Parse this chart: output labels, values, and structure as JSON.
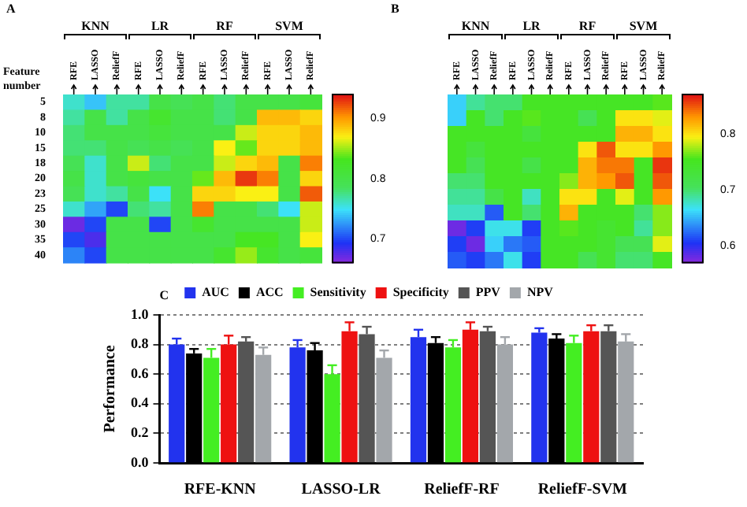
{
  "chart_data": [
    {
      "type": "heatmap",
      "title": "A",
      "ylabel": "Feature number",
      "annotations": [
        "KNN",
        "LR",
        "RF",
        "SVM"
      ],
      "categories": [
        "RFE",
        "LASSO",
        "ReliefF",
        "RFE",
        "LASSO",
        "ReliefF",
        "RFE",
        "LASSO",
        "ReliefF",
        "RFE",
        "LASSO",
        "ReliefF"
      ],
      "y_categories": [
        "5",
        "8",
        "10",
        "15",
        "18",
        "20",
        "23",
        "25",
        "30",
        "35",
        "40"
      ],
      "cells": [
        [
          0.76,
          0.74,
          0.77,
          0.77,
          0.8,
          0.79,
          0.8,
          0.78,
          0.8,
          0.8,
          0.8,
          0.81
        ],
        [
          0.77,
          0.8,
          0.77,
          0.8,
          0.82,
          0.8,
          0.8,
          0.78,
          0.8,
          0.89,
          0.89,
          0.88
        ],
        [
          0.78,
          0.8,
          0.8,
          0.8,
          0.81,
          0.8,
          0.8,
          0.8,
          0.86,
          0.88,
          0.88,
          0.89
        ],
        [
          0.78,
          0.78,
          0.8,
          0.79,
          0.8,
          0.79,
          0.8,
          0.87,
          0.84,
          0.88,
          0.88,
          0.89
        ],
        [
          0.79,
          0.76,
          0.8,
          0.86,
          0.78,
          0.8,
          0.8,
          0.86,
          0.88,
          0.89,
          0.8,
          0.91
        ],
        [
          0.8,
          0.76,
          0.8,
          0.81,
          0.8,
          0.8,
          0.84,
          0.89,
          0.93,
          0.91,
          0.8,
          0.88
        ],
        [
          0.79,
          0.76,
          0.77,
          0.8,
          0.75,
          0.8,
          0.88,
          0.88,
          0.87,
          0.87,
          0.8,
          0.92
        ],
        [
          0.76,
          0.73,
          0.7,
          0.78,
          0.77,
          0.8,
          0.91,
          0.8,
          0.8,
          0.78,
          0.75,
          0.86
        ],
        [
          0.67,
          0.7,
          0.8,
          0.8,
          0.7,
          0.8,
          0.82,
          0.8,
          0.8,
          0.8,
          0.8,
          0.86
        ],
        [
          0.7,
          0.68,
          0.8,
          0.8,
          0.8,
          0.8,
          0.8,
          0.8,
          0.83,
          0.83,
          0.8,
          0.87
        ],
        [
          0.72,
          0.7,
          0.8,
          0.8,
          0.8,
          0.8,
          0.8,
          0.82,
          0.85,
          0.82,
          0.8,
          0.81
        ]
      ],
      "clim": [
        0.66,
        0.94
      ],
      "cticks": [
        0.7,
        0.8,
        0.9
      ]
    },
    {
      "type": "heatmap",
      "title": "B",
      "annotations": [
        "KNN",
        "LR",
        "RF",
        "SVM"
      ],
      "categories": [
        "RFE",
        "LASSO",
        "ReliefF",
        "RFE",
        "LASSO",
        "ReliefF",
        "RFE",
        "LASSO",
        "ReliefF",
        "RFE",
        "LASSO",
        "ReliefF"
      ],
      "y_categories": [
        "5",
        "8",
        "10",
        "15",
        "18",
        "20",
        "23",
        "25",
        "30",
        "35",
        "40"
      ],
      "tick_labels": "x",
      "cells": [
        [
          0.66,
          0.69,
          0.7,
          0.7,
          0.75,
          0.75,
          0.75,
          0.75,
          0.75,
          0.75,
          0.75,
          0.76
        ],
        [
          0.66,
          0.75,
          0.7,
          0.75,
          0.76,
          0.75,
          0.75,
          0.71,
          0.75,
          0.8,
          0.8,
          0.79
        ],
        [
          0.75,
          0.75,
          0.75,
          0.75,
          0.73,
          0.75,
          0.75,
          0.75,
          0.75,
          0.82,
          0.82,
          0.8
        ],
        [
          0.75,
          0.73,
          0.75,
          0.75,
          0.75,
          0.75,
          0.75,
          0.8,
          0.85,
          0.8,
          0.8,
          0.83
        ],
        [
          0.75,
          0.71,
          0.75,
          0.75,
          0.72,
          0.75,
          0.75,
          0.82,
          0.84,
          0.84,
          0.75,
          0.86
        ],
        [
          0.7,
          0.7,
          0.75,
          0.75,
          0.75,
          0.75,
          0.77,
          0.82,
          0.83,
          0.85,
          0.75,
          0.85
        ],
        [
          0.69,
          0.69,
          0.72,
          0.75,
          0.68,
          0.75,
          0.8,
          0.8,
          0.75,
          0.79,
          0.75,
          0.83
        ],
        [
          0.68,
          0.68,
          0.62,
          0.75,
          0.7,
          0.75,
          0.82,
          0.75,
          0.75,
          0.75,
          0.7,
          0.77
        ],
        [
          0.58,
          0.61,
          0.67,
          0.67,
          0.61,
          0.75,
          0.76,
          0.75,
          0.74,
          0.75,
          0.69,
          0.77
        ],
        [
          0.61,
          0.58,
          0.66,
          0.63,
          0.62,
          0.75,
          0.75,
          0.75,
          0.74,
          0.71,
          0.71,
          0.79
        ],
        [
          0.62,
          0.61,
          0.63,
          0.67,
          0.61,
          0.75,
          0.75,
          0.71,
          0.74,
          0.7,
          0.7,
          0.75
        ]
      ],
      "clim": [
        0.57,
        0.87
      ],
      "cticks": [
        0.6,
        0.7,
        0.8
      ]
    },
    {
      "type": "bar",
      "title": "C",
      "ylabel": "Performance",
      "categories": [
        "RFE-KNN",
        "LASSO-LR",
        "ReliefF-RF",
        "ReliefF-SVM"
      ],
      "ylim": [
        0,
        1
      ],
      "yticks": [
        {
          "value": 0,
          "label": "0.0"
        },
        0.2,
        0.4,
        0.6,
        0.8,
        {
          "value": 1,
          "label": "1.0"
        }
      ],
      "grid": "y",
      "legend": "top",
      "series": [
        {
          "name": "AUC",
          "color": "#2233ee",
          "values": [
            0.8,
            0.78,
            0.85,
            0.88
          ],
          "errors": [
            [
              0.8,
              0.84
            ],
            [
              0.78,
              0.83
            ],
            [
              0.85,
              0.9
            ],
            [
              0.88,
              0.91
            ]
          ]
        },
        {
          "name": "ACC",
          "color": "#000000",
          "values": [
            0.74,
            0.76,
            0.81,
            0.84
          ],
          "errors": [
            [
              0.74,
              0.77
            ],
            [
              0.76,
              0.81
            ],
            [
              0.81,
              0.85
            ],
            [
              0.84,
              0.87
            ]
          ]
        },
        {
          "name": "Sensitivity",
          "color": "#44ee22",
          "values": [
            0.71,
            0.6,
            0.78,
            0.81
          ],
          "errors": [
            [
              0.71,
              0.77
            ],
            [
              0.6,
              0.66
            ],
            [
              0.78,
              0.83
            ],
            [
              0.81,
              0.86
            ]
          ]
        },
        {
          "name": "Specificity",
          "color": "#ee1111",
          "values": [
            0.8,
            0.89,
            0.9,
            0.89
          ],
          "errors": [
            [
              0.8,
              0.86
            ],
            [
              0.89,
              0.95
            ],
            [
              0.9,
              0.95
            ],
            [
              0.89,
              0.93
            ]
          ]
        },
        {
          "name": "PPV",
          "color": "#555555",
          "values": [
            0.82,
            0.87,
            0.89,
            0.89
          ],
          "errors": [
            [
              0.82,
              0.85
            ],
            [
              0.87,
              0.92
            ],
            [
              0.89,
              0.92
            ],
            [
              0.89,
              0.93
            ]
          ]
        },
        {
          "name": "NPV",
          "color": "#a3a7ab",
          "values": [
            0.73,
            0.71,
            0.8,
            0.82
          ],
          "errors": [
            [
              0.73,
              0.78
            ],
            [
              0.71,
              0.76
            ],
            [
              0.8,
              0.85
            ],
            [
              0.82,
              0.87
            ]
          ]
        }
      ]
    }
  ]
}
